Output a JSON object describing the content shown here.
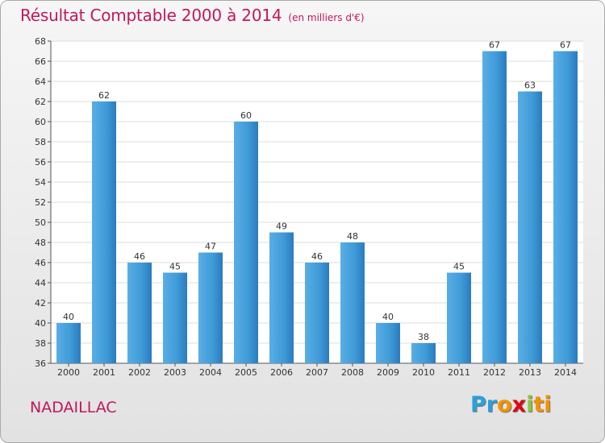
{
  "header": {
    "title": "Résultat Comptable 2000 à 2014",
    "subtitle": "(en milliers d'€)"
  },
  "footer": {
    "place": "NADAILLAC",
    "logo": {
      "p1": "Pr",
      "p2": "o",
      "p3": "x",
      "p4": "i",
      "p5": "ti"
    }
  },
  "colors": {
    "bar": "#3e9ad6",
    "bar_light": "#5aaee6",
    "bar_dark": "#2b7bbf",
    "title": "#c2185b",
    "grid": "#dcdcdc"
  },
  "chart_data": {
    "type": "bar",
    "title": "Résultat Comptable 2000 à 2014",
    "subtitle": "(en milliers d'€)",
    "xlabel": "",
    "ylabel": "",
    "categories": [
      "2000",
      "2001",
      "2002",
      "2003",
      "2004",
      "2005",
      "2006",
      "2007",
      "2008",
      "2009",
      "2010",
      "2011",
      "2012",
      "2013",
      "2014"
    ],
    "values": [
      40,
      62,
      46,
      45,
      47,
      60,
      49,
      46,
      48,
      40,
      38,
      45,
      67,
      63,
      67
    ],
    "ylim": [
      36,
      68
    ],
    "yticks": [
      36,
      38,
      40,
      42,
      44,
      46,
      48,
      50,
      52,
      54,
      56,
      58,
      60,
      62,
      64,
      66,
      68
    ],
    "grid": true,
    "legend": "none"
  }
}
